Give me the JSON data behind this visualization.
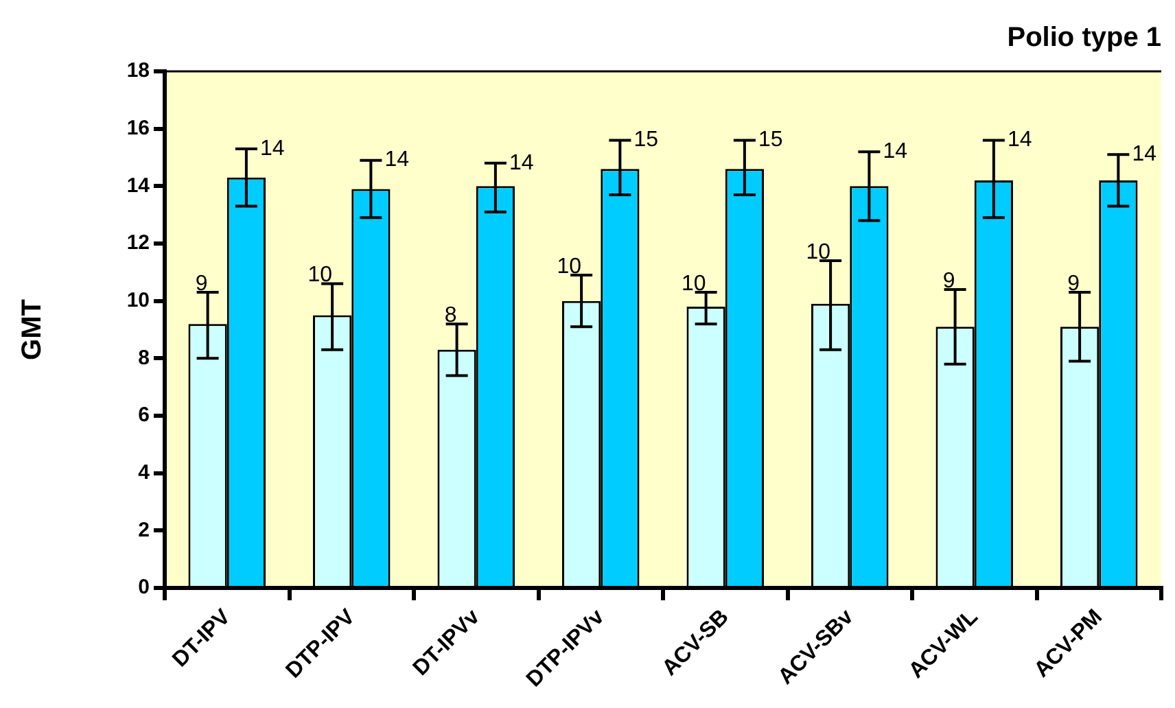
{
  "chart_data": {
    "type": "bar",
    "title": "Polio type 1",
    "ylabel": "GMT",
    "categories": [
      "DT-IPV",
      "DTP-IPV",
      "DT-IPVv",
      "DTP-IPVv",
      "ACV-SB",
      "ACV-SBv",
      "ACV-WL",
      "ACV-PM"
    ],
    "series": [
      {
        "color": "#ccffff",
        "values": [
          9.2,
          9.5,
          8.3,
          10.0,
          9.8,
          9.9,
          9.1,
          9.1
        ],
        "errors": [
          [
            8.0,
            10.3
          ],
          [
            8.3,
            10.6
          ],
          [
            7.4,
            9.2
          ],
          [
            9.1,
            10.9
          ],
          [
            9.2,
            10.3
          ],
          [
            8.3,
            11.4
          ],
          [
            7.8,
            10.4
          ],
          [
            7.9,
            10.3
          ]
        ],
        "value_labels": [
          "9",
          "10",
          "8",
          "10",
          "10",
          "10",
          "9",
          "9"
        ]
      },
      {
        "color": "#00ccff",
        "values": [
          14.3,
          13.9,
          14.0,
          14.6,
          14.6,
          14.0,
          14.2,
          14.2
        ],
        "errors": [
          [
            13.3,
            15.3
          ],
          [
            12.9,
            14.9
          ],
          [
            13.1,
            14.8
          ],
          [
            13.7,
            15.6
          ],
          [
            13.7,
            15.6
          ],
          [
            12.8,
            15.2
          ],
          [
            12.9,
            15.6
          ],
          [
            13.3,
            15.1
          ]
        ],
        "value_labels": [
          "14",
          "14",
          "14",
          "15",
          "15",
          "14",
          "14",
          "14"
        ]
      }
    ],
    "ylim": [
      0,
      18
    ],
    "yticks": [
      0,
      2,
      4,
      6,
      8,
      10,
      12,
      14,
      16,
      18
    ],
    "grid": false,
    "legend": false
  }
}
